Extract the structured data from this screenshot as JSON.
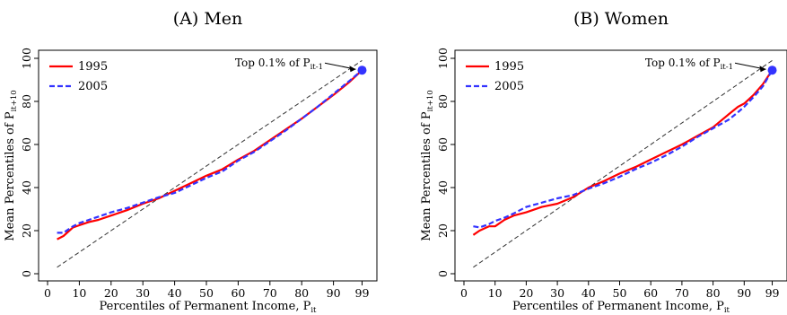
{
  "colors": {
    "series_1995": "#ff0000",
    "series_2005": "#3333ff",
    "diagonal": "#333333",
    "point": "#3333ff"
  },
  "chart_data": [
    {
      "type": "line",
      "title": "(A) Men",
      "xlabel": "Percentiles of Permanent Income, P",
      "xlabel_sub": "it",
      "ylabel": "Mean Percentiles of P",
      "ylabel_sub": "it+10",
      "xlim": [
        0,
        100
      ],
      "ylim": [
        0,
        100
      ],
      "xticks": [
        0,
        10,
        20,
        30,
        40,
        50,
        60,
        70,
        80,
        90,
        99
      ],
      "yticks": [
        0,
        20,
        40,
        60,
        80,
        100
      ],
      "legend": "top-left",
      "annotation": {
        "text": "Top 0.1% of P",
        "sub": "it-1",
        "target": [
          99,
          94.5
        ]
      },
      "diagonal": [
        [
          3,
          3
        ],
        [
          99,
          99
        ]
      ],
      "series": [
        {
          "name": "1995",
          "x": [
            3,
            5,
            8,
            10,
            13,
            16,
            20,
            25,
            30,
            35,
            40,
            45,
            50,
            55,
            60,
            65,
            70,
            75,
            80,
            85,
            90,
            95,
            99
          ],
          "y": [
            16,
            17.5,
            21.5,
            22.5,
            24,
            25,
            27,
            29.5,
            32.5,
            35,
            38.5,
            42,
            45.5,
            48.5,
            53,
            57,
            62,
            67,
            72,
            77.5,
            83,
            89,
            94.5
          ]
        },
        {
          "name": "2005",
          "x": [
            3,
            5,
            8,
            10,
            13,
            16,
            20,
            25,
            30,
            35,
            40,
            45,
            50,
            55,
            60,
            65,
            70,
            75,
            80,
            85,
            90,
            95,
            99
          ],
          "y": [
            19,
            19,
            22,
            23.5,
            25,
            26.5,
            28.5,
            30.5,
            33,
            35.5,
            37.5,
            41,
            44.5,
            47.5,
            52.5,
            56.5,
            61.5,
            66.5,
            72,
            77.5,
            83.5,
            89.5,
            94.5
          ]
        }
      ]
    },
    {
      "type": "line",
      "title": "(B) Women",
      "xlabel": "Percentiles of Permanent Income, P",
      "xlabel_sub": "it",
      "ylabel": "Mean Percentiles of P",
      "ylabel_sub": "it+10",
      "xlim": [
        0,
        100
      ],
      "ylim": [
        0,
        100
      ],
      "xticks": [
        0,
        10,
        20,
        30,
        40,
        50,
        60,
        70,
        80,
        90,
        99
      ],
      "yticks": [
        0,
        20,
        40,
        60,
        80,
        100
      ],
      "legend": "top-left",
      "annotation": {
        "text": "Top 0.1% of P",
        "sub": "it-1",
        "target": [
          99,
          94.5
        ]
      },
      "diagonal": [
        [
          3,
          3
        ],
        [
          99,
          99
        ]
      ],
      "series": [
        {
          "name": "1995",
          "x": [
            3,
            5,
            8,
            10,
            13,
            16,
            20,
            25,
            30,
            35,
            40,
            45,
            50,
            55,
            60,
            65,
            70,
            75,
            80,
            85,
            88,
            90,
            93,
            96,
            99
          ],
          "y": [
            18,
            20,
            22,
            22,
            25,
            27,
            28.5,
            31,
            32.5,
            35.5,
            40,
            43,
            46.5,
            49.5,
            53,
            56.5,
            60,
            64,
            68,
            74,
            77.5,
            79,
            83,
            88,
            94.5
          ]
        },
        {
          "name": "2005",
          "x": [
            3,
            5,
            8,
            10,
            13,
            16,
            20,
            25,
            30,
            35,
            40,
            45,
            50,
            55,
            60,
            65,
            70,
            75,
            80,
            85,
            88,
            90,
            93,
            96,
            99
          ],
          "y": [
            22,
            21.5,
            23,
            24.5,
            26,
            28,
            31,
            33,
            35,
            36.5,
            39.5,
            42,
            45,
            48.5,
            51.5,
            55,
            59,
            63.5,
            67.5,
            71.5,
            75,
            77.5,
            82,
            87,
            94.5
          ]
        }
      ]
    }
  ]
}
